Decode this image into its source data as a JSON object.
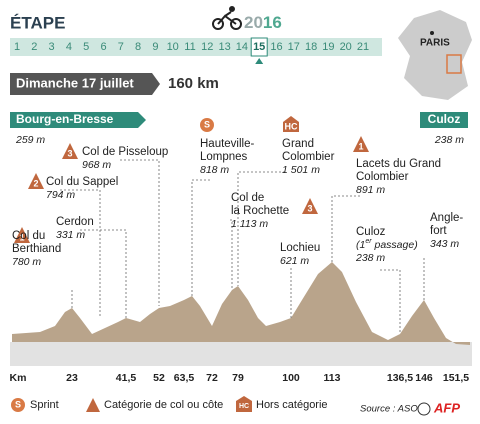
{
  "header": {
    "title": "ÉTAPE",
    "year_prefix": "20",
    "year_suffix": "16",
    "stages": [
      "1",
      "2",
      "3",
      "4",
      "5",
      "6",
      "7",
      "8",
      "9",
      "10",
      "11",
      "12",
      "13",
      "14",
      "15",
      "16",
      "17",
      "18",
      "19",
      "20",
      "21"
    ],
    "current_stage": "15",
    "map_label": "PARIS",
    "date": "Dimanche 17 juillet",
    "distance": "160 km"
  },
  "start": {
    "name": "Bourg-en-Bresse",
    "altitude": "259 m"
  },
  "finish": {
    "name": "Culoz",
    "altitude": "238 m"
  },
  "points": [
    {
      "icon": "1",
      "label": [
        "Col du",
        "Berthiand"
      ],
      "altitude": "780 m"
    },
    {
      "icon": "2",
      "label": [
        "Col du Sappel"
      ],
      "altitude": "794 m"
    },
    {
      "icon": "3",
      "label": [
        "Col de Pisseloup"
      ],
      "altitude": "968 m"
    },
    {
      "label": [
        "Cerdon"
      ],
      "altitude": "331 m"
    },
    {
      "icon": "S",
      "label": [
        "Hauteville-",
        "Lompnes"
      ],
      "altitude": "818 m"
    },
    {
      "icon": "HC",
      "label": [
        "Grand",
        "Colombier"
      ],
      "altitude": "1 501 m"
    },
    {
      "icon": "3",
      "label": [
        "Col de",
        "la Rochette"
      ],
      "altitude": "1 113 m"
    },
    {
      "label": [
        "Lochieu"
      ],
      "altitude": "621 m"
    },
    {
      "icon": "1",
      "label": [
        "Lacets du Grand",
        "Colombier"
      ],
      "altitude": "891 m"
    },
    {
      "label": [
        "Culoz"
      ],
      "note_pre": "(1",
      "note_sup": "er",
      "note_post": " passage)",
      "altitude": "238 m"
    },
    {
      "label": [
        "Angle-",
        "fort"
      ],
      "altitude": "343 m"
    }
  ],
  "km_axis": [
    "Km",
    "23",
    "41,5",
    "52",
    "63,5",
    "72",
    "79",
    "100",
    "113",
    "136,5",
    "146",
    "151,5"
  ],
  "legend": {
    "sprint_icon": "S",
    "sprint": "Sprint",
    "category": "Catégorie de col ou côte",
    "hc_icon": "HC",
    "hc": "Hors catégorie"
  },
  "source": "Source : ASO",
  "logo": "AFP"
}
